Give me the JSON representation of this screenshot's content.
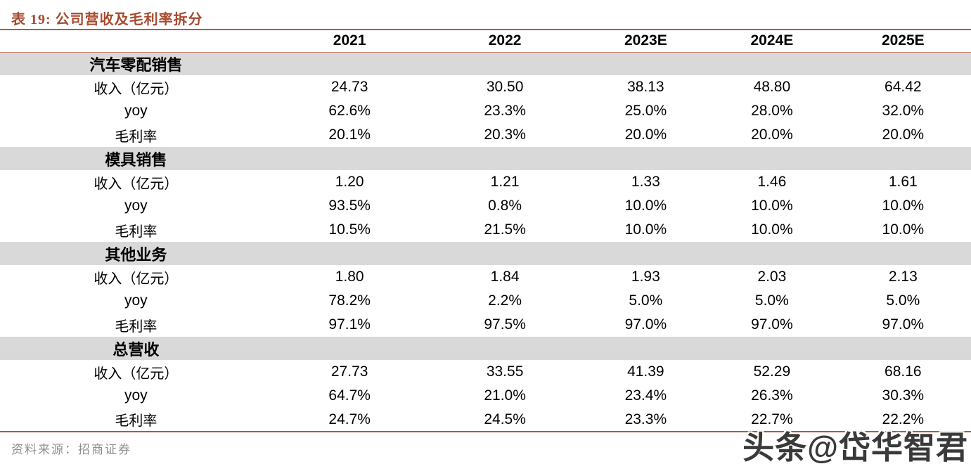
{
  "header": {
    "title": "表 19:  公司营收及毛利率拆分"
  },
  "chart_data": {
    "type": "table",
    "title": "公司营收及毛利率拆分",
    "columns": [
      "2021",
      "2022",
      "2023E",
      "2024E",
      "2025E"
    ],
    "sections": [
      {
        "name": "汽车零配销售",
        "rows": [
          {
            "label": "收入（亿元）",
            "values": [
              "24.73",
              "30.50",
              "38.13",
              "48.80",
              "64.42"
            ]
          },
          {
            "label": "yoy",
            "values": [
              "62.6%",
              "23.3%",
              "25.0%",
              "28.0%",
              "32.0%"
            ]
          },
          {
            "label": "毛利率",
            "values": [
              "20.1%",
              "20.3%",
              "20.0%",
              "20.0%",
              "20.0%"
            ]
          }
        ]
      },
      {
        "name": "模具销售",
        "rows": [
          {
            "label": "收入（亿元）",
            "values": [
              "1.20",
              "1.21",
              "1.33",
              "1.46",
              "1.61"
            ]
          },
          {
            "label": "yoy",
            "values": [
              "93.5%",
              "0.8%",
              "10.0%",
              "10.0%",
              "10.0%"
            ]
          },
          {
            "label": "毛利率",
            "values": [
              "10.5%",
              "21.5%",
              "10.0%",
              "10.0%",
              "10.0%"
            ]
          }
        ]
      },
      {
        "name": "其他业务",
        "rows": [
          {
            "label": "收入（亿元）",
            "values": [
              "1.80",
              "1.84",
              "1.93",
              "2.03",
              "2.13"
            ]
          },
          {
            "label": "yoy",
            "values": [
              "78.2%",
              "2.2%",
              "5.0%",
              "5.0%",
              "5.0%"
            ]
          },
          {
            "label": "毛利率",
            "values": [
              "97.1%",
              "97.5%",
              "97.0%",
              "97.0%",
              "97.0%"
            ]
          }
        ]
      },
      {
        "name": "总营收",
        "rows": [
          {
            "label": "收入（亿元）",
            "values": [
              "27.73",
              "33.55",
              "41.39",
              "52.29",
              "68.16"
            ]
          },
          {
            "label": "yoy",
            "values": [
              "64.7%",
              "21.0%",
              "23.4%",
              "26.3%",
              "30.3%"
            ]
          },
          {
            "label": "毛利率",
            "values": [
              "24.7%",
              "24.5%",
              "23.3%",
              "22.7%",
              "22.2%"
            ]
          }
        ]
      }
    ]
  },
  "footer": {
    "source": "资料来源：招商证券"
  },
  "watermark": "头条@岱华智君",
  "colors": {
    "title_accent": "#A64B2F",
    "rule_thick": "#B0593B",
    "rule_thin": "#C78A6D",
    "section_banner_bg": "#D9D9D9",
    "source_text": "#8F8F8F",
    "watermark_text": "#3A3A3A"
  }
}
